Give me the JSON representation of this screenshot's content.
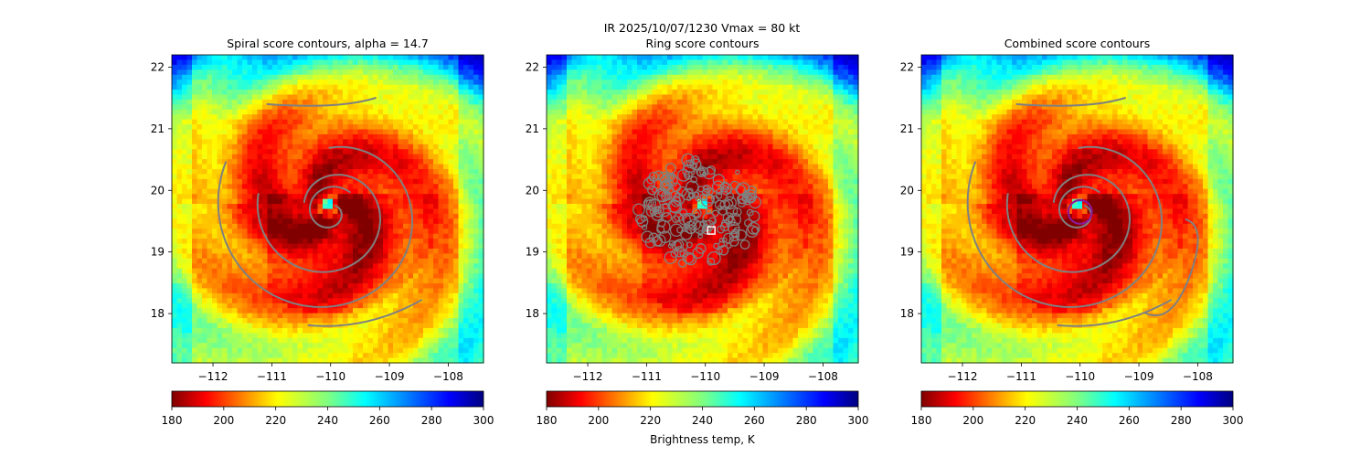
{
  "figure": {
    "suptitle_line1": "IR  2025/10/07/1230    Vmax = 80 kt",
    "colorbar_label": "Brightness temp, K"
  },
  "colors": {
    "contour": "#808080",
    "ring_marker": "#8b1a9a",
    "center_marker_edge": "#ffffff"
  },
  "chart_data": [
    {
      "type": "heatmap",
      "title": "Spiral score contours, alpha = 14.7",
      "xlabel": "",
      "ylabel": "",
      "xlim": [
        -112.7,
        -107.4
      ],
      "ylim": [
        17.2,
        22.2
      ],
      "xticks": [
        -112,
        -111,
        -110,
        -109,
        -108
      ],
      "xtick_labels": [
        "−112",
        "−111",
        "−110",
        "−109",
        "−108"
      ],
      "yticks": [
        18,
        19,
        20,
        21,
        22
      ],
      "ytick_labels": [
        "18",
        "19",
        "20",
        "21",
        "22"
      ],
      "colormap": "jet_r",
      "color_range": [
        180,
        300
      ],
      "storm_center": [
        -110.0,
        19.65
      ],
      "contours": "spiral",
      "colorbar_ticks": [
        180,
        200,
        220,
        240,
        260,
        280,
        300
      ]
    },
    {
      "type": "heatmap",
      "title": "Ring score contours",
      "xlabel": "",
      "ylabel": "",
      "xlim": [
        -112.7,
        -107.4
      ],
      "ylim": [
        17.2,
        22.2
      ],
      "xticks": [
        -112,
        -111,
        -110,
        -109,
        -108
      ],
      "xtick_labels": [
        "−112",
        "−111",
        "−110",
        "−109",
        "−108"
      ],
      "yticks": [
        18,
        19,
        20,
        21,
        22
      ],
      "ytick_labels": [
        "18",
        "19",
        "20",
        "21",
        "22"
      ],
      "colormap": "jet_r",
      "color_range": [
        180,
        300
      ],
      "storm_center": [
        -110.0,
        19.65
      ],
      "contours": "ring-cluster",
      "square_marker": [
        -109.9,
        19.35
      ],
      "colorbar_ticks": [
        180,
        200,
        220,
        240,
        260,
        280,
        300
      ]
    },
    {
      "type": "heatmap",
      "title": "Combined score contours",
      "xlabel": "",
      "ylabel": "",
      "xlim": [
        -112.7,
        -107.4
      ],
      "ylim": [
        17.2,
        22.2
      ],
      "xticks": [
        -112,
        -111,
        -110,
        -109,
        -108
      ],
      "xtick_labels": [
        "−112",
        "−111",
        "−110",
        "−109",
        "−108"
      ],
      "yticks": [
        18,
        19,
        20,
        21,
        22
      ],
      "ytick_labels": [
        "18",
        "19",
        "20",
        "21",
        "22"
      ],
      "colormap": "jet_r",
      "color_range": [
        180,
        300
      ],
      "storm_center": [
        -110.0,
        19.65
      ],
      "contours": "combined",
      "circle_marker": {
        "center": [
          -110.0,
          19.65
        ],
        "radius_deg": 0.2
      },
      "colorbar_ticks": [
        180,
        200,
        220,
        240,
        260,
        280,
        300
      ]
    }
  ]
}
